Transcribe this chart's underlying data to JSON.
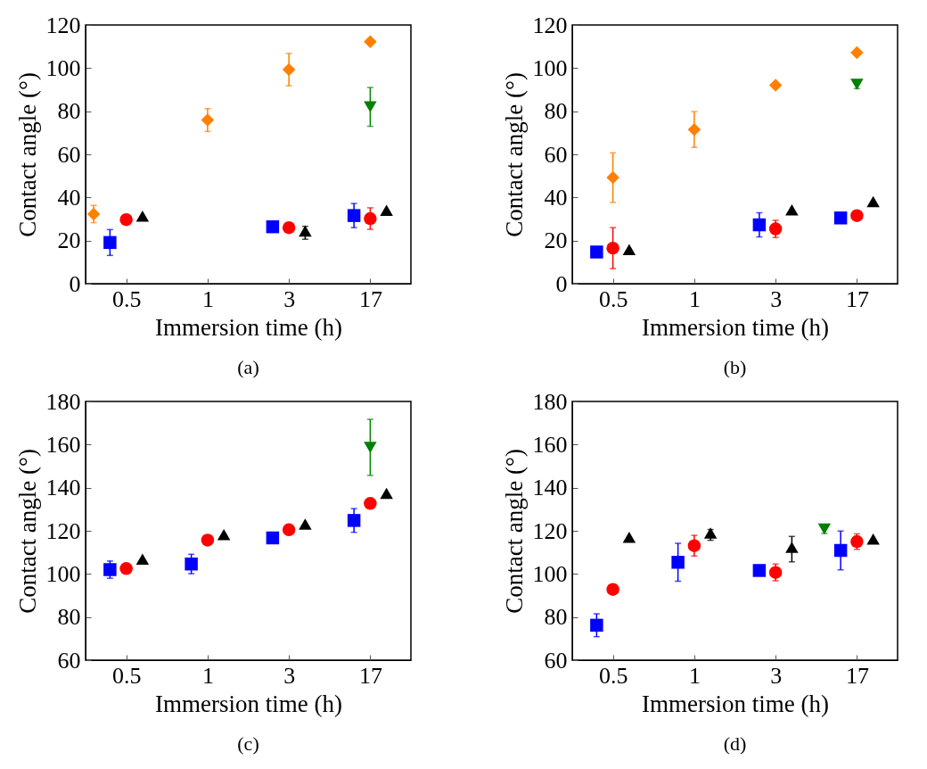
{
  "chart_data": [
    {
      "type": "scatter",
      "categories": [
        "0.5",
        "1",
        "3",
        "17"
      ],
      "xlabel": "Immersion time (h)",
      "ylabel": "Contact angle (°)",
      "ylim": [
        0,
        120
      ],
      "yticks": [
        0,
        20,
        40,
        60,
        80,
        100,
        120
      ],
      "annotations": [
        "(a)"
      ],
      "series": [
        {
          "color": "#ff8000",
          "marker": "diamond",
          "values": [
            32.3,
            75.9,
            99.3,
            112.2
          ],
          "errors": [
            4,
            5.3,
            7.5,
            null
          ]
        },
        {
          "color": "#0000ff",
          "marker": "square",
          "values": [
            19.1,
            null,
            26.4,
            31.6
          ],
          "errors": [
            6,
            null,
            null,
            5.6
          ]
        },
        {
          "color": "#ff0000",
          "marker": "circle",
          "values": [
            29.7,
            null,
            26,
            30.2
          ],
          "errors": [
            null,
            null,
            null,
            5
          ]
        },
        {
          "color": "#000000",
          "marker": "triangle",
          "values": [
            30.5,
            null,
            23.6,
            33.2
          ],
          "errors": [
            null,
            null,
            3,
            null
          ]
        },
        {
          "color": "#008000",
          "marker": "triangle-down",
          "values": [
            null,
            null,
            null,
            82
          ],
          "errors": [
            null,
            null,
            null,
            9
          ]
        }
      ]
    },
    {
      "type": "scatter",
      "categories": [
        "0.5",
        "1",
        "3",
        "17"
      ],
      "xlabel": "Immersion time (h)",
      "ylabel": "Contact angle (°)",
      "ylim": [
        0,
        120
      ],
      "yticks": [
        0,
        20,
        40,
        60,
        80,
        100,
        120
      ],
      "annotations": [
        "(b)"
      ],
      "series": [
        {
          "color": "#ff8000",
          "marker": "diamond",
          "values": [
            49.2,
            71.5,
            92.1,
            107.2
          ],
          "errors": [
            11.5,
            8.3,
            null,
            null
          ]
        },
        {
          "color": "#0000ff",
          "marker": "square",
          "values": [
            14.7,
            null,
            27.3,
            30.5
          ],
          "errors": [
            null,
            null,
            5.6,
            null
          ]
        },
        {
          "color": "#ff0000",
          "marker": "circle",
          "values": [
            16.5,
            null,
            25.4,
            31.6
          ],
          "errors": [
            9.5,
            null,
            4,
            null
          ]
        },
        {
          "color": "#000000",
          "marker": "triangle",
          "values": [
            15,
            null,
            33.4,
            37.2
          ],
          "errors": [
            null,
            null,
            null,
            null
          ]
        },
        {
          "color": "#008000",
          "marker": "triangle-down",
          "values": [
            null,
            null,
            null,
            92.5
          ],
          "errors": [
            null,
            null,
            null,
            2
          ]
        }
      ]
    },
    {
      "type": "scatter",
      "categories": [
        "0.5",
        "1",
        "3",
        "17"
      ],
      "xlabel": "Immersion time (h)",
      "ylabel": "Contact angle (°)",
      "ylim": [
        60,
        180
      ],
      "yticks": [
        60,
        80,
        100,
        120,
        140,
        160,
        180
      ],
      "annotations": [
        "(c)"
      ],
      "series": [
        {
          "color": "#0000ff",
          "marker": "square",
          "values": [
            102,
            104.6,
            116.7,
            124.8
          ],
          "errors": [
            4,
            4.5,
            null,
            5.5
          ]
        },
        {
          "color": "#ff0000",
          "marker": "circle",
          "values": [
            102.5,
            115.7,
            120.5,
            132.7
          ],
          "errors": [
            null,
            null,
            null,
            null
          ]
        },
        {
          "color": "#000000",
          "marker": "triangle",
          "values": [
            106,
            117.4,
            122.2,
            136.5
          ],
          "errors": [
            null,
            null,
            null,
            null
          ]
        },
        {
          "color": "#008000",
          "marker": "triangle-down",
          "values": [
            null,
            null,
            null,
            158.7
          ],
          "errors": [
            null,
            null,
            null,
            13
          ]
        }
      ]
    },
    {
      "type": "scatter",
      "categories": [
        "0.5",
        "1",
        "3",
        "17"
      ],
      "xlabel": "Immersion time (h)",
      "ylabel": "Contact angle (°)",
      "ylim": [
        60,
        180
      ],
      "yticks": [
        60,
        80,
        100,
        120,
        140,
        160,
        180
      ],
      "annotations": [
        "(d)"
      ],
      "series": [
        {
          "color": "#0000ff",
          "marker": "square",
          "values": [
            76.2,
            105.4,
            101.6,
            110.9
          ],
          "errors": [
            5.3,
            8.8,
            null,
            9
          ]
        },
        {
          "color": "#ff0000",
          "marker": "circle",
          "values": [
            92.8,
            113.1,
            100.7,
            115
          ],
          "errors": [
            null,
            4.8,
            3.9,
            3.6
          ]
        },
        {
          "color": "#000000",
          "marker": "triangle",
          "values": [
            116.1,
            118.1,
            111.5,
            115.3
          ],
          "errors": [
            null,
            2.5,
            5.9,
            null
          ]
        },
        {
          "color": "#008000",
          "marker": "triangle-down",
          "values": [
            null,
            null,
            null,
            120.8
          ],
          "errors": [
            null,
            null,
            null,
            2
          ]
        }
      ]
    }
  ]
}
